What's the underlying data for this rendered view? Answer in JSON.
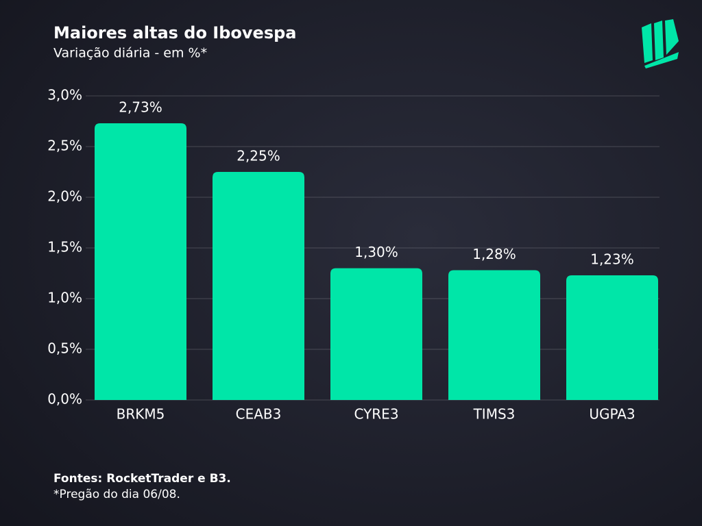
{
  "chart_data": {
    "type": "bar",
    "title": "Maiores altas do Ibovespa",
    "subtitle": "Variação diária - em %*",
    "categories": [
      "BRKM5",
      "CEAB3",
      "CYRE3",
      "TIMS3",
      "UGPA3"
    ],
    "values": [
      2.73,
      2.25,
      1.3,
      1.28,
      1.23
    ],
    "value_labels": [
      "2,73%",
      "2,25%",
      "1,30%",
      "1,28%",
      "1,23%"
    ],
    "color": "#00e6a8",
    "ylim": [
      0,
      3
    ],
    "yticks": [
      {
        "value": 0,
        "label": "0,0%"
      },
      {
        "value": 0.5,
        "label": "0,5%"
      },
      {
        "value": 1,
        "label": "1,0%"
      },
      {
        "value": 1.5,
        "label": "1,5%"
      },
      {
        "value": 2,
        "label": "2,0%"
      },
      {
        "value": 2.5,
        "label": "2,5%"
      },
      {
        "value": 3,
        "label": "3,0%"
      }
    ],
    "grid": true,
    "source": "Fontes: RocketTrader e B3.",
    "note": "*Pregão do dia 06/08."
  }
}
